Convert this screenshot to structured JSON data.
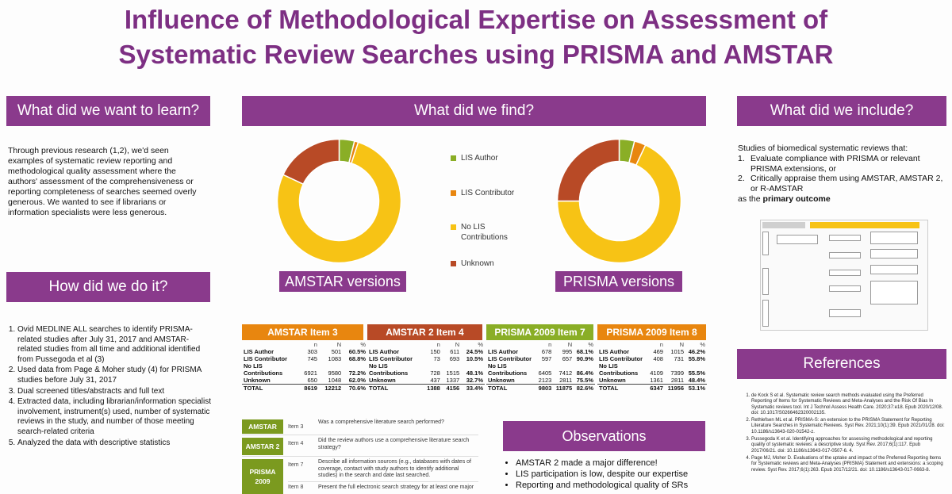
{
  "title": {
    "line1": "Influence of Methodological Expertise on Assessment of",
    "line2": "Systematic Review Searches using PRISMA and AMSTAR"
  },
  "colors": {
    "purple": "#8a3a8c",
    "title": "#7d2f83",
    "orange": "#e8860f",
    "rust": "#b84a26",
    "green": "#8aae26",
    "gold": "#f7c315"
  },
  "learn": {
    "heading": "What did we want to learn?",
    "body": "Through previous research (1,2), we'd seen examples of systematic review reporting and methodological quality assessment where the authors' assessment of the comprehensiveness or reporting completeness of searches seemed overly generous. We wanted to see if librarians or information specialists were less generous."
  },
  "how": {
    "heading": "How did we do it?",
    "steps": [
      "Ovid MEDLINE ALL searches to identify PRISMA-related studies after July 31, 2017 and AMSTAR-related studies from all time and additional identified from Pussegoda et al (3)",
      "Used data from Page & Moher study (4) for PRISMA studies before July 31, 2017",
      "Dual screened titles/abstracts and full text",
      "Extracted data, including librarian/information specialist involvement, instrument(s) used, number of systematic reviews in the study, and number of those meeting search-related criteria",
      "Analyzed the data with descriptive statistics"
    ]
  },
  "find": {
    "heading": "What did we find?",
    "legend": [
      {
        "label": "LIS Author",
        "color": "#8aae26"
      },
      {
        "label": "LIS Contributor",
        "color": "#e8860f"
      },
      {
        "label": "No LIS Contributions",
        "color": "#f7c315"
      },
      {
        "label": "Unknown",
        "color": "#b84a26"
      }
    ],
    "donut_amstar_label": "AMSTAR versions",
    "donut_prisma_label": "PRISMA versions"
  },
  "chart_data": [
    {
      "type": "pie",
      "title": "AMSTAR versions",
      "categories": [
        "LIS Author",
        "LIS Contributor",
        "No LIS Contributions",
        "Unknown"
      ],
      "values": [
        4,
        1,
        77,
        18
      ]
    },
    {
      "type": "pie",
      "title": "PRISMA versions",
      "categories": [
        "LIS Author",
        "LIS Contributor",
        "No LIS Contributions",
        "Unknown"
      ],
      "values": [
        4,
        3,
        68,
        25
      ]
    }
  ],
  "tables": [
    {
      "header": "AMSTAR Item 3",
      "color": "#e8860f",
      "rowlabels": [
        "LIS Author",
        "LIS Contributor",
        "No LIS",
        "Contributions",
        "Unknown",
        "TOTAL"
      ],
      "rows": [
        [
          "303",
          "501",
          "60.5%"
        ],
        [
          "745",
          "1083",
          "68.8%"
        ],
        [
          "",
          "",
          ""
        ],
        [
          "6921",
          "9580",
          "72.2%"
        ],
        [
          "650",
          "1048",
          "62.0%"
        ],
        [
          "8619",
          "12212",
          "70.6%"
        ]
      ]
    },
    {
      "header": "AMSTAR 2 Item 4",
      "color": "#b84a26",
      "rowlabels": [
        "LIS Author",
        "LIS Contributor",
        "No LIS",
        "Contributions",
        "Unknown",
        "TOTAL"
      ],
      "rows": [
        [
          "150",
          "611",
          "24.5%"
        ],
        [
          "73",
          "693",
          "10.5%"
        ],
        [
          "",
          "",
          ""
        ],
        [
          "728",
          "1515",
          "48.1%"
        ],
        [
          "437",
          "1337",
          "32.7%"
        ],
        [
          "1388",
          "4156",
          "33.4%"
        ]
      ]
    },
    {
      "header": "PRISMA 2009 Item 7",
      "color": "#8aae26",
      "rowlabels": [
        "LIS Author",
        "LIS Contributor",
        "No LIS",
        "Contributions",
        "Unknown",
        "TOTAL"
      ],
      "rows": [
        [
          "678",
          "995",
          "68.1%"
        ],
        [
          "597",
          "657",
          "90.9%"
        ],
        [
          "",
          "",
          ""
        ],
        [
          "6405",
          "7412",
          "86.4%"
        ],
        [
          "2123",
          "2811",
          "75.5%"
        ],
        [
          "9803",
          "11875",
          "82.6%"
        ]
      ]
    },
    {
      "header": "PRISMA 2009 Item 8",
      "color": "#e8860f",
      "rowlabels": [
        "LIS Author",
        "LIS Contributor",
        "No LIS",
        "Contributions",
        "Unknown",
        "TOTAL"
      ],
      "rows": [
        [
          "469",
          "1015",
          "46.2%"
        ],
        [
          "408",
          "731",
          "55.8%"
        ],
        [
          "",
          "",
          ""
        ],
        [
          "4109",
          "7399",
          "55.5%"
        ],
        [
          "1361",
          "2811",
          "48.4%"
        ],
        [
          "6347",
          "11956",
          "53.1%"
        ]
      ]
    }
  ],
  "table_cols": [
    "n",
    "N",
    "%"
  ],
  "items": [
    {
      "label": "AMSTAR",
      "item": "Item 3",
      "text": "Was a comprehensive literature search performed?"
    },
    {
      "label": "AMSTAR 2",
      "item": "Item 4",
      "text": "Did the review authors use a comprehensive literature search strategy?"
    },
    {
      "label": "PRISMA 2009",
      "item": "Item 7",
      "text": "Describe all information sources (e.g., databases with dates of coverage, contact with study authors to identify additional studies) in the search and date last searched."
    },
    {
      "label": "",
      "item": "Item 8",
      "text": "Present the full electronic search strategy for at least one major"
    }
  ],
  "observations": {
    "heading": "Observations",
    "bullets": [
      "AMSTAR 2 made a major difference!",
      "LIS participation is low, despite our expertise",
      "Reporting and methodological quality of SRs"
    ]
  },
  "include": {
    "heading": "What did we include?",
    "intro": "Studies of biomedical systematic reviews that:",
    "list": [
      "Evaluate compliance with PRISMA or relevant PRISMA extensions, or",
      "Critically appraise them using AMSTAR, AMSTAR 2, or R-AMSTAR"
    ],
    "outro_prefix": "as the ",
    "outro_bold": "primary outcome"
  },
  "references": {
    "heading": "References",
    "items": [
      "de Kock S et al. Systematic review search methods evaluated using the Preferred Reporting of Items for Systematic Reviews and Meta-Analyses and the Risk Of Bias In Systematic reviews tool. Int J Technol Assess Health Care. 2020;37:e18. Epub 2020/12/08. doi: 10.1017/S0266462320002135.",
      "Rethlefsen ML et al. PRISMA-S: an extension to the PRISMA Statement for Reporting Literature Searches in Systematic Reviews. Syst Rev. 2021;10(1):39. Epub 2021/01/28. doi: 10.1186/s13643-020-01542-z.",
      "Pussegoda K et al. Identifying approaches for assessing methodological and reporting quality of systematic reviews: a descriptive study. Syst Rev. 2017;6(1):117. Epub 2017/06/21. doi: 10.1186/s13643-017-0507-6. 4.",
      "Page MJ, Moher D. Evaluations of the uptake and impact of the Preferred Reporting Items for Systematic reviews and Meta-Analyses (PRISMA) Statement and extensions: a scoping review. Syst Rev. 2017;6(1):263. Epub 2017/12/21. doi: 10.1186/s13643-017-0663-8."
    ]
  }
}
